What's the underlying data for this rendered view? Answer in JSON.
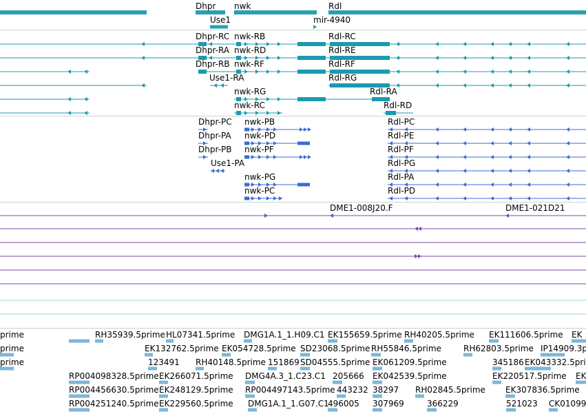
{
  "colors": {
    "gene": "#2aa0b0",
    "transcript": "#1a9ab0",
    "protein": "#3a6ed0",
    "clone": "#7a4aa8",
    "est": "#7ab8d8",
    "separator": "#cfcfcf"
  },
  "genes": [
    {
      "label": "Dhpr"
    },
    {
      "label": "nwk"
    },
    {
      "label": "Rdl"
    },
    {
      "label": "Use1"
    },
    {
      "label": "mir-4940"
    }
  ],
  "transcripts": [
    {
      "label": "Dhpr-RC"
    },
    {
      "label": "nwk-RB"
    },
    {
      "label": "Rdl-RC"
    },
    {
      "label": "Dhpr-RA"
    },
    {
      "label": "nwk-RD"
    },
    {
      "label": "Rdl-RE"
    },
    {
      "label": "Dhpr-RB"
    },
    {
      "label": "nwk-RF"
    },
    {
      "label": "Rdl-RF"
    },
    {
      "label": "Use1-RA"
    },
    {
      "label": "Rdl-RG"
    },
    {
      "label": "nwk-RG"
    },
    {
      "label": "Rdl-RA"
    },
    {
      "label": "nwk-RC"
    },
    {
      "label": "Rdl-RD"
    }
  ],
  "proteins": [
    {
      "label": "Dhpr-PC"
    },
    {
      "label": "nwk-PB"
    },
    {
      "label": "Rdl-PC"
    },
    {
      "label": "Dhpr-PA"
    },
    {
      "label": "nwk-PD"
    },
    {
      "label": "Rdl-PE"
    },
    {
      "label": "Dhpr-PB"
    },
    {
      "label": "nwk-PF"
    },
    {
      "label": "Rdl-PF"
    },
    {
      "label": "Use1-PA"
    },
    {
      "label": "Rdl-PG"
    },
    {
      "label": "nwk-PG"
    },
    {
      "label": "Rdl-PA"
    },
    {
      "label": "nwk-PC"
    },
    {
      "label": "Rdl-PD"
    }
  ],
  "clones": [
    {
      "label": "DME1-008J20.F"
    },
    {
      "label": "DME1-021D21"
    }
  ],
  "ests": [
    {
      "label": "prime"
    },
    {
      "label": "RH35939.5prime"
    },
    {
      "label": "HL07341.5prime"
    },
    {
      "label": "DMG1A.1_1.H09.C1"
    },
    {
      "label": "EK155659.5prime"
    },
    {
      "label": "RH40205.5prime"
    },
    {
      "label": "EK111606.5prime"
    },
    {
      "label": "EK"
    },
    {
      "label": "prime"
    },
    {
      "label": "EK132762.5prime"
    },
    {
      "label": "EK054728.5prime"
    },
    {
      "label": "SD23068.5prime"
    },
    {
      "label": "RH55846.5prime"
    },
    {
      "label": "RH62803.5prime"
    },
    {
      "label": "IP14909.3p"
    },
    {
      "label": "prime"
    },
    {
      "label": "123491"
    },
    {
      "label": "RH40148.5prime"
    },
    {
      "label": "151869"
    },
    {
      "label": "SD04555.5prime"
    },
    {
      "label": "EK061209.5prime"
    },
    {
      "label": "345186"
    },
    {
      "label": "EK043332.5prime"
    },
    {
      "label": "RP004098328.5prime"
    },
    {
      "label": "EK266071.5prime"
    },
    {
      "label": "DMG4A.3_1.C23.C1"
    },
    {
      "label": "205666"
    },
    {
      "label": "EK042539.5prime"
    },
    {
      "label": "EK220517.5prime"
    },
    {
      "label": "EK"
    },
    {
      "label": "RP004456630.5prime"
    },
    {
      "label": "EK248129.5prime"
    },
    {
      "label": "RP004497143.5prime"
    },
    {
      "label": "443232"
    },
    {
      "label": "38297"
    },
    {
      "label": "RH02845.5prime"
    },
    {
      "label": "EK307836.5prime"
    },
    {
      "label": "RP004251240.5prime"
    },
    {
      "label": "EK229560.5prime"
    },
    {
      "label": "DMG1A.1_1.G07.C1"
    },
    {
      "label": "496005"
    },
    {
      "label": "307969"
    },
    {
      "label": "366229"
    },
    {
      "label": "521023"
    },
    {
      "label": "CK01099"
    }
  ]
}
